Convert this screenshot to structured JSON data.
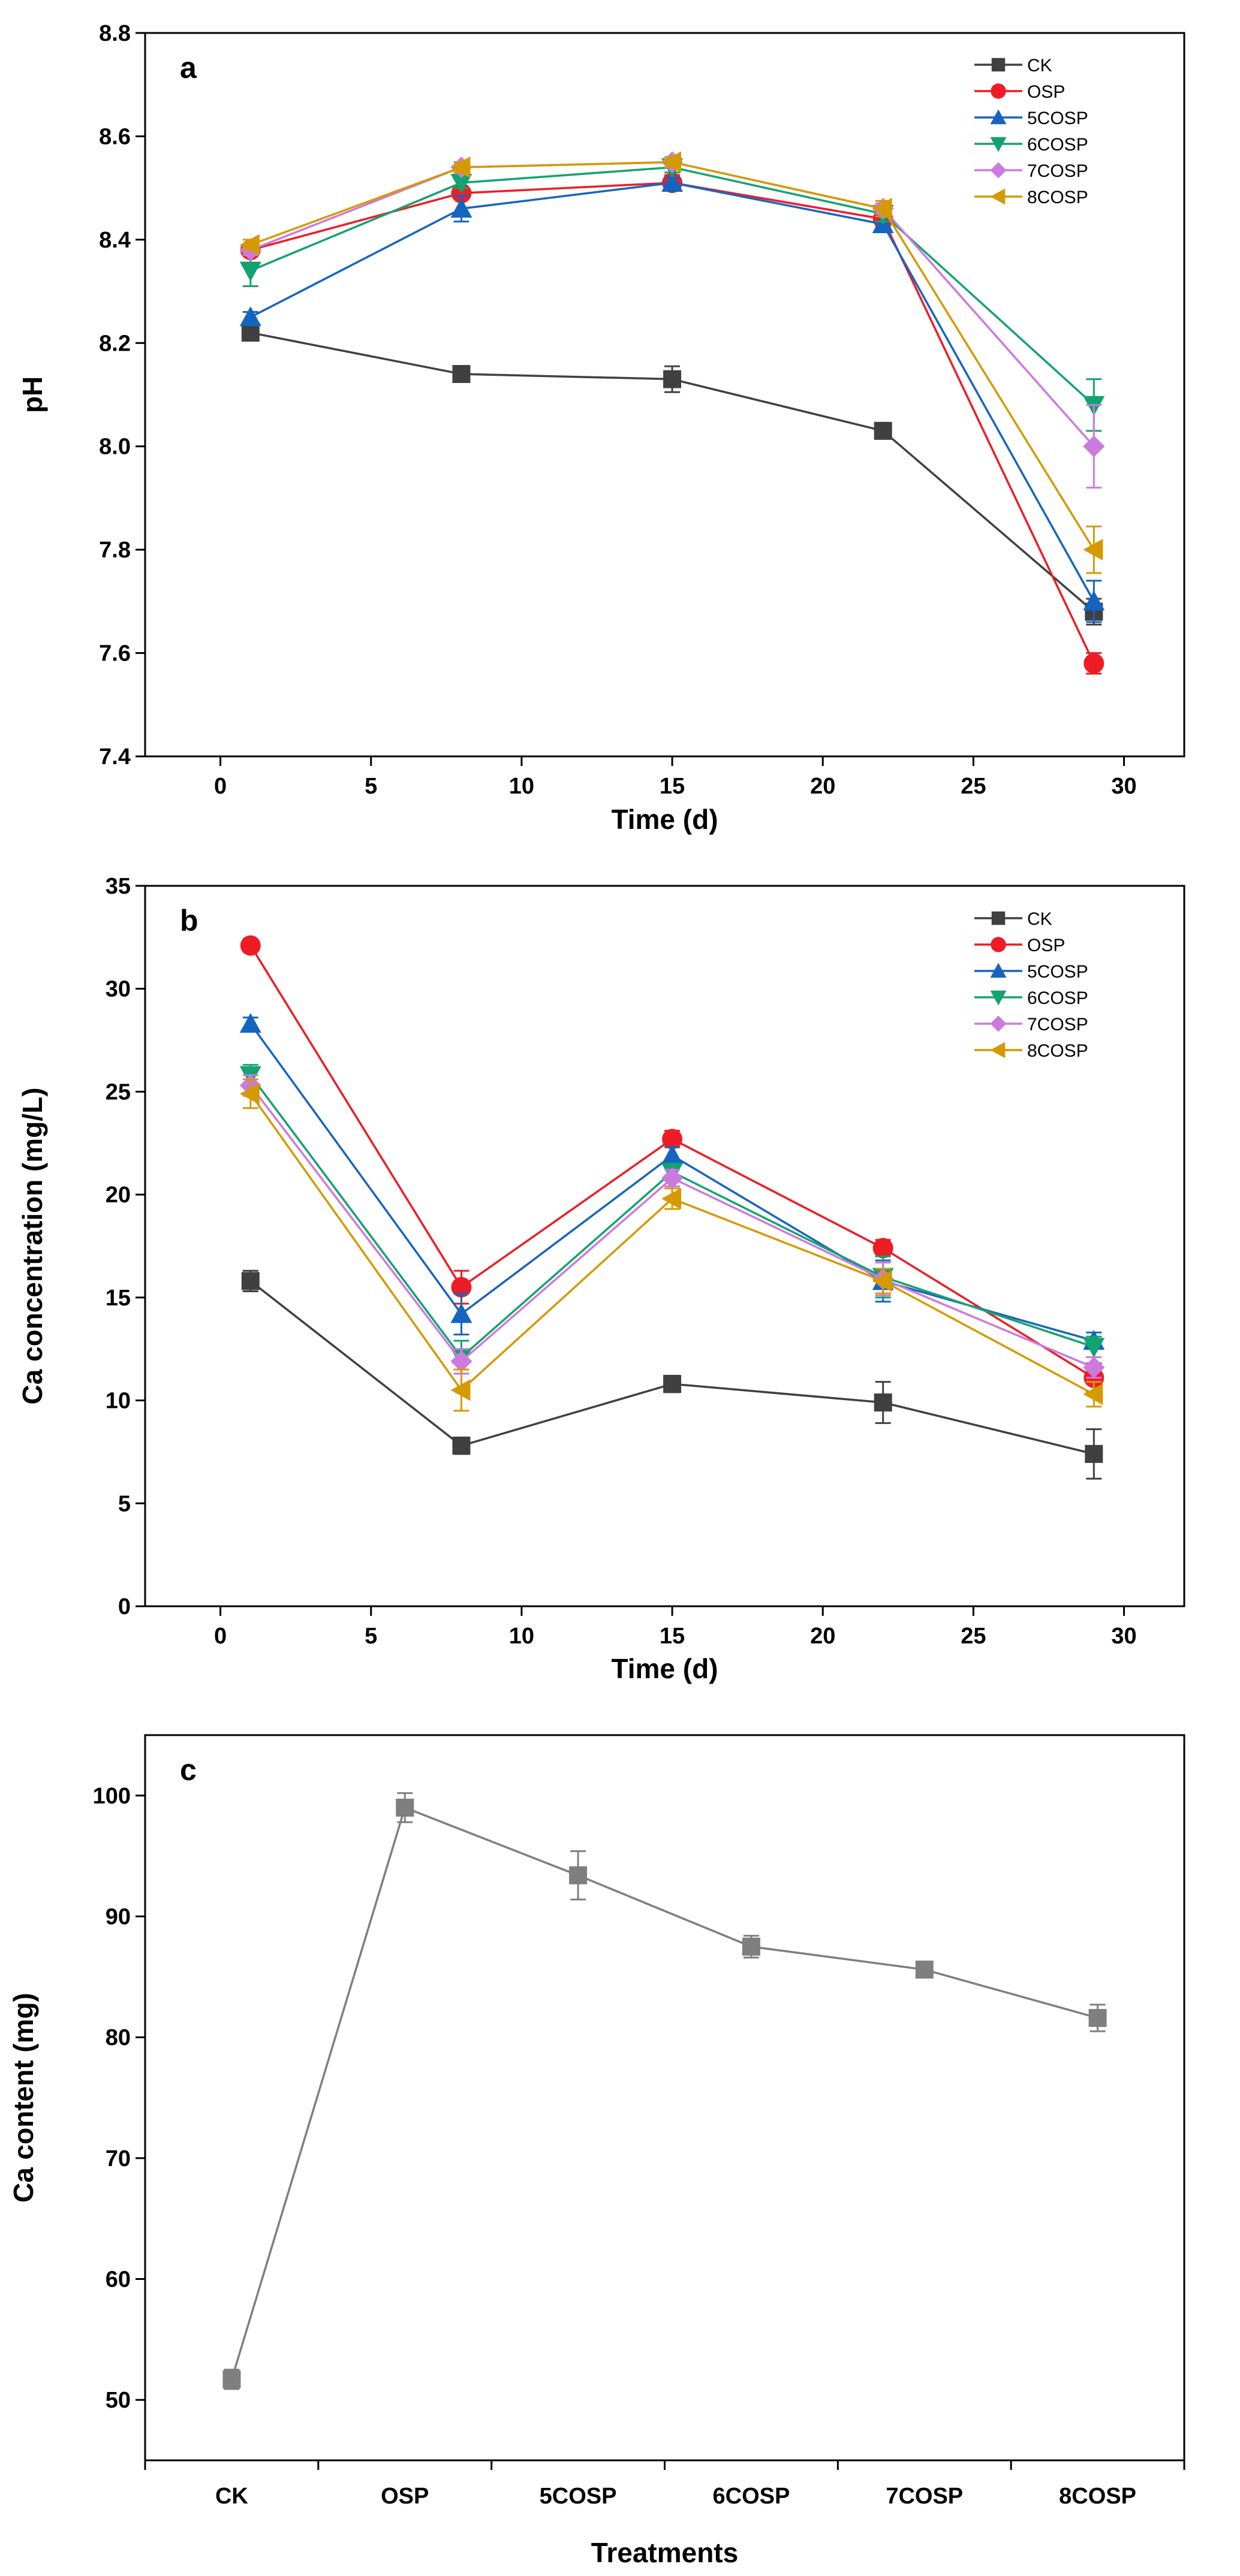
{
  "chart_data": [
    {
      "type": "line",
      "panel_label": "a",
      "xlabel": "Time (d)",
      "ylabel": "pH",
      "xlim": [
        -2.5,
        32
      ],
      "ylim": [
        7.4,
        8.8
      ],
      "xticks": [
        0,
        5,
        10,
        15,
        20,
        25,
        30
      ],
      "xtick_labels": [
        "0",
        "5",
        "10",
        "15",
        "20",
        "25",
        "30"
      ],
      "yticks": [
        7.4,
        7.6,
        7.8,
        8.0,
        8.2,
        8.4,
        8.6,
        8.8
      ],
      "ytick_labels": [
        "7.4",
        "7.6",
        "7.8",
        "8.0",
        "8.2",
        "8.4",
        "8.6",
        "8.8"
      ],
      "legend_position": "top-right",
      "x": [
        1,
        8,
        15,
        22,
        29
      ],
      "series": [
        {
          "name": "CK",
          "color": "#404040",
          "marker": "square",
          "values": [
            8.22,
            8.14,
            8.13,
            8.03,
            7.68
          ],
          "errors": [
            0.01,
            0.015,
            0.025,
            0.012,
            0.025
          ]
        },
        {
          "name": "OSP",
          "color": "#ee1c25",
          "marker": "circle",
          "values": [
            8.38,
            8.49,
            8.51,
            8.44,
            7.58
          ],
          "errors": [
            0.01,
            0.01,
            0.015,
            0.015,
            0.02
          ]
        },
        {
          "name": "5COSP",
          "color": "#1565c0",
          "marker": "triangle-up",
          "values": [
            8.25,
            8.46,
            8.51,
            8.43,
            7.7
          ],
          "errors": [
            0.01,
            0.025,
            0.01,
            0.015,
            0.04
          ]
        },
        {
          "name": "6COSP",
          "color": "#12a36f",
          "marker": "triangle-down",
          "values": [
            8.34,
            8.51,
            8.54,
            8.45,
            8.08
          ],
          "errors": [
            0.03,
            0.01,
            0.01,
            0.015,
            0.05
          ]
        },
        {
          "name": "7COSP",
          "color": "#cc7ae0",
          "marker": "diamond",
          "values": [
            8.38,
            8.54,
            8.55,
            8.46,
            8.0
          ],
          "errors": [
            0.01,
            0.01,
            0.01,
            0.01,
            0.08
          ]
        },
        {
          "name": "8COSP",
          "color": "#d49a00",
          "marker": "triangle-left",
          "values": [
            8.39,
            8.54,
            8.55,
            8.46,
            7.8
          ],
          "errors": [
            0.01,
            0.01,
            0.01,
            0.015,
            0.045
          ]
        }
      ]
    },
    {
      "type": "line",
      "panel_label": "b",
      "xlabel": "Time (d)",
      "ylabel": "Ca concentration (mg/L)",
      "xlim": [
        -2.5,
        32
      ],
      "ylim": [
        0,
        35
      ],
      "xticks": [
        0,
        5,
        10,
        15,
        20,
        25,
        30
      ],
      "xtick_labels": [
        "0",
        "5",
        "10",
        "15",
        "20",
        "25",
        "30"
      ],
      "yticks": [
        0,
        5,
        10,
        15,
        20,
        25,
        30,
        35
      ],
      "ytick_labels": [
        "0",
        "5",
        "10",
        "15",
        "20",
        "25",
        "30",
        "35"
      ],
      "legend_position": "top-right",
      "x": [
        1,
        8,
        15,
        22,
        29
      ],
      "series": [
        {
          "name": "CK",
          "color": "#404040",
          "marker": "square",
          "values": [
            15.8,
            7.8,
            10.8,
            9.9,
            7.4
          ],
          "errors": [
            0.5,
            0.4,
            0.4,
            1.0,
            1.2
          ]
        },
        {
          "name": "OSP",
          "color": "#ee1c25",
          "marker": "circle",
          "values": [
            32.1,
            15.5,
            22.7,
            17.4,
            11.1
          ],
          "errors": [
            0.3,
            0.8,
            0.4,
            0.4,
            0.7
          ]
        },
        {
          "name": "5COSP",
          "color": "#1565c0",
          "marker": "triangle-up",
          "values": [
            28.3,
            14.2,
            21.9,
            15.8,
            12.9
          ],
          "errors": [
            0.3,
            1.0,
            0.4,
            1.0,
            0.4
          ]
        },
        {
          "name": "6COSP",
          "color": "#12a36f",
          "marker": "triangle-down",
          "values": [
            25.8,
            12.1,
            21.1,
            16.0,
            12.6
          ],
          "errors": [
            0.5,
            0.8,
            0.4,
            1.0,
            0.5
          ]
        },
        {
          "name": "7COSP",
          "color": "#cc7ae0",
          "marker": "diamond",
          "values": [
            25.3,
            11.9,
            20.8,
            15.9,
            11.6
          ],
          "errors": [
            0.5,
            0.6,
            0.4,
            0.8,
            0.5
          ]
        },
        {
          "name": "8COSP",
          "color": "#d49a00",
          "marker": "triangle-left",
          "values": [
            24.9,
            10.5,
            19.8,
            15.8,
            10.3
          ],
          "errors": [
            0.7,
            1.0,
            0.5,
            0.6,
            0.6
          ]
        }
      ]
    },
    {
      "type": "line",
      "panel_label": "c",
      "xlabel": "Treatments",
      "ylabel": "Ca content (mg)",
      "ylim": [
        45,
        105
      ],
      "yticks": [
        50,
        60,
        70,
        80,
        90,
        100
      ],
      "ytick_labels": [
        "50",
        "60",
        "70",
        "80",
        "90",
        "100"
      ],
      "categories": [
        "CK",
        "OSP",
        "5COSP",
        "6COSP",
        "7COSP",
        "8COSP"
      ],
      "series": [
        {
          "name": "Ca content",
          "color": "#7f7f7f",
          "marker": "square",
          "values": [
            51.7,
            99.0,
            93.4,
            87.5,
            85.6,
            81.6
          ],
          "errors": [
            0.8,
            1.2,
            2.0,
            0.9,
            0.6,
            1.1
          ]
        }
      ]
    }
  ]
}
